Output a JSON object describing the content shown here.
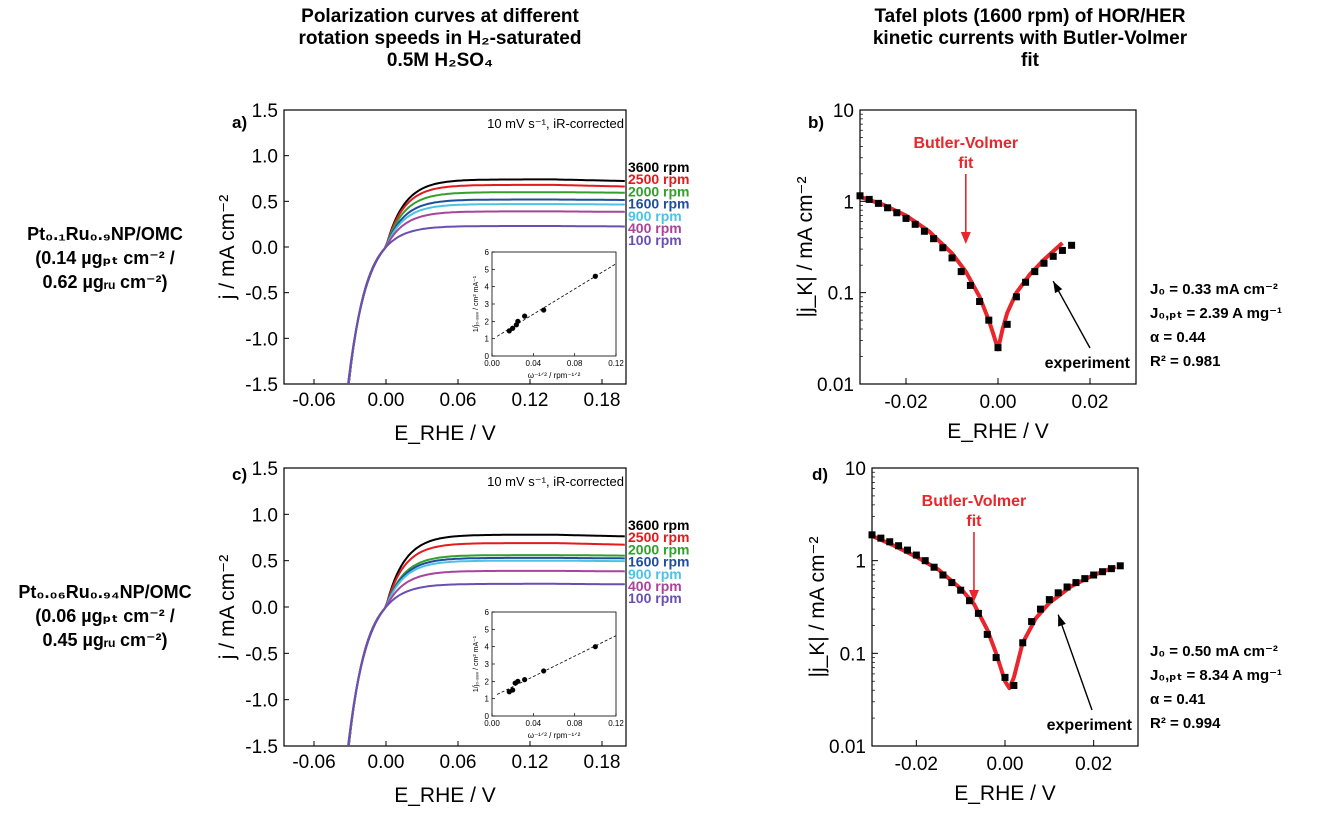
{
  "column_titles": {
    "left": [
      "Polarization curves at different",
      "rotation speeds in H₂-saturated",
      "0.5M H₂SO₄"
    ],
    "right": [
      "Tafel plots (1600 rpm) of HOR/HER",
      "kinetic currents with Butler-Volmer",
      "fit"
    ]
  },
  "rows": [
    {
      "sample_label": [
        "Pt₀.₁Ru₀.₉NP/OMC",
        "(0.14 µgₚₜ cm⁻² /",
        "0.62 µgᵣᵤ cm⁻²)"
      ],
      "params": [
        "J₀ = 0.33 mA cm⁻²",
        "J₀,ₚₜ = 2.39 A mg⁻¹",
        "α = 0.44",
        "R² = 0.981"
      ]
    },
    {
      "sample_label": [
        "Pt₀.₀₆Ru₀.₉₄NP/OMC",
        "(0.06 µgₚₜ cm⁻² /",
        "0.45 µgᵣᵤ cm⁻²)"
      ],
      "params": [
        "J₀ = 0.50 mA cm⁻²",
        "J₀,ₚₜ = 8.34 A mg⁻¹",
        "α = 0.41",
        "R² = 0.994"
      ]
    }
  ],
  "chart_data": [
    {
      "panel": "a)",
      "type": "line",
      "xlabel": "E_RHE / V",
      "ylabel": "j / mA cm⁻²",
      "xlim": [
        -0.085,
        0.2
      ],
      "ylim": [
        -1.5,
        1.5
      ],
      "xticks": [
        "-0.06",
        "0.00",
        "0.06",
        "0.12",
        "0.18"
      ],
      "yticks": [
        "1.5",
        "1.0",
        "0.5",
        "0.0",
        "-0.5",
        "-1.0",
        "-1.5"
      ],
      "annotation": "10 mV s⁻¹, iR-corrected",
      "series": [
        {
          "name": "3600 rpm",
          "color": "#000000",
          "limit": 0.74
        },
        {
          "name": "2500 rpm",
          "color": "#e41a1c",
          "limit": 0.68
        },
        {
          "name": "2000 rpm",
          "color": "#33a02c",
          "limit": 0.6
        },
        {
          "name": "1600 rpm",
          "color": "#1f4e9c",
          "limit": 0.52
        },
        {
          "name": "900 rpm",
          "color": "#4cc3e6",
          "limit": 0.47
        },
        {
          "name": "400 rpm",
          "color": "#a9449b",
          "limit": 0.39
        },
        {
          "name": "100 rpm",
          "color": "#6a4fb3",
          "limit": 0.23
        }
      ],
      "inset": {
        "xlabel": "ω⁻¹ᐟ² / rpm⁻¹ᐟ²",
        "ylabel": "1/j₀.₈₈ᵥ / cm² mA⁻¹",
        "xlim": [
          0,
          0.12
        ],
        "ylim": [
          0,
          6
        ],
        "xticks": [
          "0.00",
          "0.04",
          "0.08",
          "0.12"
        ],
        "yticks": [
          "0",
          "1",
          "2",
          "3",
          "4",
          "5",
          "6"
        ],
        "x": [
          0.0167,
          0.02,
          0.0236,
          0.025,
          0.0316,
          0.05,
          0.1
        ],
        "y": [
          1.45,
          1.6,
          1.8,
          2.0,
          2.3,
          2.65,
          4.6
        ]
      }
    },
    {
      "panel": "b)",
      "type": "scatter",
      "xlabel": "E_RHE / V",
      "ylabel": "|j_K| / mA cm⁻²",
      "scale": "log",
      "xlim": [
        -0.03,
        0.03
      ],
      "ylim": [
        0.01,
        10
      ],
      "xticks": [
        "-0.02",
        "0.00",
        "0.02"
      ],
      "yticks": [
        "10",
        "1",
        "0.1",
        "0.01"
      ],
      "fit_label": [
        "Butler-Volmer",
        "fit"
      ],
      "experiment_label": "experiment",
      "series": [
        {
          "name": "experiment",
          "x": [
            -0.03,
            -0.028,
            -0.026,
            -0.024,
            -0.022,
            -0.02,
            -0.018,
            -0.016,
            -0.014,
            -0.012,
            -0.01,
            -0.008,
            -0.006,
            -0.004,
            -0.002,
            0.0,
            0.002,
            0.004,
            0.006,
            0.008,
            0.01,
            0.012,
            0.014,
            0.016
          ],
          "y": [
            1.15,
            1.05,
            0.95,
            0.85,
            0.75,
            0.65,
            0.56,
            0.47,
            0.39,
            0.31,
            0.24,
            0.17,
            0.12,
            0.08,
            0.05,
            0.025,
            0.045,
            0.09,
            0.13,
            0.17,
            0.21,
            0.25,
            0.29,
            0.33
          ]
        },
        {
          "name": "Butler-Volmer fit",
          "x": [
            -0.03,
            -0.025,
            -0.02,
            -0.015,
            -0.01,
            -0.007,
            -0.004,
            -0.002,
            -0.001,
            0.0,
            0.001,
            0.002,
            0.004,
            0.007,
            0.01,
            0.014
          ],
          "y": [
            1.12,
            0.92,
            0.7,
            0.47,
            0.27,
            0.17,
            0.09,
            0.05,
            0.035,
            0.024,
            0.04,
            0.06,
            0.1,
            0.16,
            0.23,
            0.35
          ]
        }
      ]
    },
    {
      "panel": "c)",
      "type": "line",
      "xlabel": "E_RHE / V",
      "ylabel": "j / mA cm⁻²",
      "xlim": [
        -0.085,
        0.2
      ],
      "ylim": [
        -1.5,
        1.5
      ],
      "xticks": [
        "-0.06",
        "0.00",
        "0.06",
        "0.12",
        "0.18"
      ],
      "yticks": [
        "1.5",
        "1.0",
        "0.5",
        "0.0",
        "-0.5",
        "-1.0",
        "-1.5"
      ],
      "annotation": "10 mV s⁻¹, iR-corrected",
      "series": [
        {
          "name": "3600 rpm",
          "color": "#000000",
          "limit": 0.78
        },
        {
          "name": "2500 rpm",
          "color": "#e41a1c",
          "limit": 0.69
        },
        {
          "name": "2000 rpm",
          "color": "#33a02c",
          "limit": 0.56
        },
        {
          "name": "1600 rpm",
          "color": "#1f4e9c",
          "limit": 0.53
        },
        {
          "name": "900 rpm",
          "color": "#4cc3e6",
          "limit": 0.5
        },
        {
          "name": "400 rpm",
          "color": "#a9449b",
          "limit": 0.39
        },
        {
          "name": "100 rpm",
          "color": "#6a4fb3",
          "limit": 0.25
        }
      ],
      "inset": {
        "xlabel": "ω⁻¹ᐟ² / rpm⁻¹ᐟ²",
        "ylabel": "1/j₀.₈₈ᵥ / cm² mA⁻¹",
        "xlim": [
          0,
          0.12
        ],
        "ylim": [
          0,
          6
        ],
        "xticks": [
          "0.00",
          "0.04",
          "0.08",
          "0.12"
        ],
        "yticks": [
          "0",
          "1",
          "2",
          "3",
          "4",
          "5",
          "6"
        ],
        "x": [
          0.0167,
          0.02,
          0.0224,
          0.025,
          0.0316,
          0.05,
          0.1
        ],
        "y": [
          1.4,
          1.5,
          1.9,
          2.0,
          2.1,
          2.6,
          4.0
        ]
      }
    },
    {
      "panel": "d)",
      "type": "scatter",
      "xlabel": "E_RHE / V",
      "ylabel": "|j_K| / mA cm⁻²",
      "scale": "log",
      "xlim": [
        -0.03,
        0.03
      ],
      "ylim": [
        0.01,
        10
      ],
      "xticks": [
        "-0.02",
        "0.00",
        "0.02"
      ],
      "yticks": [
        "10",
        "1",
        "0.1",
        "0.01"
      ],
      "fit_label": [
        "Butler-Volmer",
        "fit"
      ],
      "experiment_label": "experiment",
      "series": [
        {
          "name": "experiment",
          "x": [
            -0.03,
            -0.028,
            -0.026,
            -0.024,
            -0.022,
            -0.02,
            -0.018,
            -0.016,
            -0.014,
            -0.012,
            -0.01,
            -0.008,
            -0.006,
            -0.004,
            -0.002,
            0.0,
            0.002,
            0.004,
            0.006,
            0.008,
            0.01,
            0.012,
            0.014,
            0.016,
            0.018,
            0.02,
            0.022,
            0.024,
            0.026
          ],
          "y": [
            1.9,
            1.75,
            1.6,
            1.45,
            1.3,
            1.15,
            1.0,
            0.85,
            0.7,
            0.58,
            0.48,
            0.37,
            0.27,
            0.16,
            0.09,
            0.055,
            0.045,
            0.13,
            0.22,
            0.3,
            0.38,
            0.45,
            0.52,
            0.58,
            0.64,
            0.7,
            0.76,
            0.82,
            0.88
          ]
        },
        {
          "name": "Butler-Volmer fit",
          "x": [
            -0.03,
            -0.025,
            -0.02,
            -0.015,
            -0.01,
            -0.007,
            -0.004,
            -0.002,
            0.0,
            0.001,
            0.002,
            0.004,
            0.007,
            0.01,
            0.015,
            0.02,
            0.025
          ],
          "y": [
            1.85,
            1.45,
            1.1,
            0.8,
            0.5,
            0.34,
            0.18,
            0.1,
            0.05,
            0.042,
            0.055,
            0.13,
            0.24,
            0.35,
            0.53,
            0.7,
            0.86
          ]
        }
      ]
    }
  ]
}
